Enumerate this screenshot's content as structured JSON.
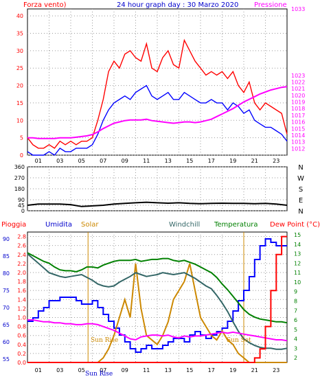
{
  "header": {
    "left_label": "Forza vento)",
    "title": "24 hour graph day : 30 Marzo 2020",
    "right_label": "Pressione"
  },
  "bottom_header": {
    "pioggia": "Pioggia",
    "umidita": "Umidita",
    "solar": "Solar",
    "windchill": "Windchill",
    "temperatura": "Temperatura",
    "dewpoint": "Dew Point (°C)"
  },
  "annotations": {
    "sun_rise": "Sun Rise",
    "sun_set": "Sun Set",
    "sun_rise_axis": "Sun Rise"
  },
  "colors": {
    "wind": "#ff0000",
    "gust_avg": "#0000ff",
    "pressure": "#ff00ff",
    "direction": "#000000",
    "humidity": "#0000ff",
    "solar": "#cc8800",
    "windchill": "#336666",
    "temperature": "#008000",
    "dewpoint": "#ff00ff",
    "rain": "#ff0000",
    "grid": "#999999"
  },
  "chart_data": [
    {
      "type": "line",
      "title": "24 hour graph day : 30 Marzo 2020",
      "xlabel": "",
      "ylabel": "Forza vento)",
      "y2label": "Pressione",
      "x": [
        0,
        0.5,
        1,
        1.5,
        2,
        2.5,
        3,
        3.5,
        4,
        4.5,
        5,
        5.5,
        6,
        6.5,
        7,
        7.5,
        8,
        8.5,
        9,
        9.5,
        10,
        10.5,
        11,
        11.5,
        12,
        12.5,
        13,
        13.5,
        14,
        14.5,
        15,
        15.5,
        16,
        16.5,
        17,
        17.5,
        18,
        18.5,
        19,
        19.5,
        20,
        20.5,
        21,
        21.5,
        22,
        22.5,
        23,
        23.5,
        24
      ],
      "xticks": [
        "01",
        "03",
        "05",
        "07",
        "09",
        "11",
        "13",
        "15",
        "17",
        "19",
        "21",
        "23"
      ],
      "xtick_values": [
        1,
        3,
        5,
        7,
        9,
        11,
        13,
        15,
        17,
        19,
        21,
        23
      ],
      "ylim": [
        0,
        42
      ],
      "yticks": [
        0,
        5,
        10,
        15,
        20,
        25,
        30,
        35,
        40
      ],
      "y2lim": [
        1011,
        1033
      ],
      "y2ticks": [
        1012,
        1013,
        1014,
        1015,
        1016,
        1017,
        1018,
        1019,
        1020,
        1021,
        1022,
        1023,
        1033
      ],
      "series": [
        {
          "name": "Forza vento)",
          "axis": "left",
          "color": "#ff0000",
          "values": [
            5,
            3,
            2,
            2,
            3,
            2,
            4,
            3,
            4,
            3,
            4,
            4,
            5,
            10,
            16,
            24,
            27,
            25,
            29,
            30,
            28,
            27,
            32,
            25,
            24,
            28,
            30,
            26,
            25,
            33,
            30,
            27,
            25,
            23,
            24,
            23,
            24,
            22,
            24,
            20,
            18,
            21,
            15,
            13,
            15,
            14,
            13,
            12,
            6
          ]
        },
        {
          "name": "",
          "axis": "left",
          "color": "#0000ff",
          "values": [
            1,
            0,
            0,
            0,
            1,
            0,
            2,
            1,
            1,
            2,
            2,
            2,
            3,
            6,
            10,
            13,
            15,
            16,
            17,
            16,
            18,
            19,
            20,
            17,
            16,
            17,
            18,
            16,
            16,
            18,
            17,
            16,
            15,
            15,
            16,
            15,
            15,
            13,
            15,
            14,
            12,
            13,
            10,
            9,
            8,
            8,
            7,
            6,
            4
          ]
        },
        {
          "name": "Pressione",
          "axis": "right",
          "color": "#ff00ff",
          "values": [
            1013.6,
            1013.6,
            1013.5,
            1013.5,
            1013.5,
            1013.5,
            1013.6,
            1013.6,
            1013.6,
            1013.7,
            1013.8,
            1013.9,
            1014.1,
            1014.5,
            1015.0,
            1015.4,
            1015.8,
            1016.0,
            1016.2,
            1016.3,
            1016.3,
            1016.3,
            1016.4,
            1016.2,
            1016.1,
            1016.0,
            1015.9,
            1015.8,
            1015.9,
            1016.0,
            1016.0,
            1015.9,
            1016.0,
            1016.2,
            1016.4,
            1016.8,
            1017.2,
            1017.6,
            1018.0,
            1018.5,
            1019.0,
            1019.4,
            1019.8,
            1020.2,
            1020.5,
            1020.8,
            1021.0,
            1021.2,
            1021.3
          ]
        }
      ]
    },
    {
      "type": "line",
      "title": "",
      "ylabel": "",
      "y2label": "",
      "ylim": [
        0,
        360
      ],
      "yticks": [
        0,
        45,
        90,
        180,
        270,
        360
      ],
      "right_labels": [
        "N",
        "W",
        "S",
        "E",
        "N"
      ],
      "x": [
        0,
        1,
        2,
        3,
        4,
        5,
        6,
        7,
        8,
        9,
        10,
        11,
        12,
        13,
        14,
        15,
        16,
        17,
        18,
        19,
        20,
        21,
        22,
        23,
        24
      ],
      "series": [
        {
          "name": "",
          "color": "#000000",
          "values": [
            45,
            55,
            55,
            55,
            50,
            35,
            40,
            45,
            55,
            60,
            65,
            70,
            65,
            62,
            65,
            60,
            58,
            60,
            62,
            60,
            60,
            58,
            60,
            55,
            45
          ]
        }
      ]
    },
    {
      "type": "line",
      "title": "",
      "xticks": [
        "01",
        "03",
        "05",
        "07",
        "09",
        "11",
        "13",
        "15",
        "17",
        "19",
        "21",
        "23"
      ],
      "xtick_values": [
        1,
        3,
        5,
        7,
        9,
        11,
        13,
        15,
        17,
        19,
        21,
        23
      ],
      "y_rain_ticks": [
        0,
        0.2,
        0.4,
        0.6,
        0.8,
        1.0,
        1.2,
        1.4,
        1.6,
        1.8,
        2.0,
        2.2,
        2.4,
        2.6,
        2.8
      ],
      "y_hum_ticks": [
        55,
        60,
        65,
        70,
        75,
        80,
        85,
        90
      ],
      "y_temp_ticks": [
        2,
        3,
        4,
        5,
        6,
        7,
        8,
        9,
        10,
        11,
        12,
        13,
        14,
        15
      ],
      "x": [
        0,
        0.5,
        1,
        1.5,
        2,
        2.5,
        3,
        3.5,
        4,
        4.5,
        5,
        5.5,
        6,
        6.5,
        7,
        7.5,
        8,
        8.5,
        9,
        9.5,
        10,
        10.5,
        11,
        11.5,
        12,
        12.5,
        13,
        13.5,
        14,
        14.5,
        15,
        15.5,
        16,
        16.5,
        17,
        17.5,
        18,
        18.5,
        19,
        19.5,
        20,
        20.5,
        21,
        21.5,
        22,
        22.5,
        23,
        23.5,
        24
      ],
      "series": [
        {
          "name": "Umidita",
          "unit": "%",
          "color": "#0000ff",
          "values": [
            66,
            67,
            69,
            70,
            72,
            72,
            73,
            73,
            73,
            72,
            71,
            71,
            72,
            70,
            68,
            66,
            64,
            62,
            60,
            58,
            57,
            58,
            59,
            58,
            58,
            59,
            60,
            61,
            61,
            60,
            62,
            63,
            62,
            61,
            62,
            63,
            64,
            66,
            69,
            72,
            75,
            79,
            84,
            88,
            90,
            89,
            88,
            88,
            88
          ]
        },
        {
          "name": "Solar",
          "unit": "W/m2",
          "color": "#cc8800",
          "values": [
            0,
            0,
            0,
            0,
            0,
            0,
            0,
            0,
            0,
            0,
            0,
            0,
            0,
            0,
            0.1,
            0.3,
            0.6,
            1.0,
            1.4,
            1.0,
            2.2,
            1.2,
            0.6,
            0.5,
            0.4,
            0.6,
            0.9,
            1.4,
            1.6,
            1.8,
            2.2,
            1.6,
            1.0,
            0.8,
            0.6,
            0.5,
            0.7,
            0.5,
            0.4,
            0.2,
            0.1,
            0,
            0,
            0,
            0,
            0,
            0,
            0,
            0
          ]
        },
        {
          "name": "Windchill",
          "unit": "°C",
          "color": "#336666",
          "values": [
            13,
            12.5,
            12,
            11.5,
            11,
            10.8,
            10.6,
            10.5,
            10.6,
            10.7,
            10.8,
            10.5,
            10.2,
            9.8,
            9.6,
            9.5,
            9.6,
            10.0,
            10.3,
            10.6,
            11.0,
            10.8,
            10.6,
            10.7,
            10.8,
            11.0,
            10.9,
            10.8,
            10.9,
            11.0,
            10.7,
            10.4,
            10.0,
            9.6,
            9.3,
            8.6,
            7.8,
            6.9,
            5.8,
            4.8,
            4.0,
            3.6,
            3.3,
            3.1,
            3.0,
            3.0,
            2.9,
            2.9,
            3.0
          ]
        },
        {
          "name": "Temperatura",
          "unit": "°C",
          "color": "#008000",
          "values": [
            13.1,
            12.8,
            12.5,
            12.2,
            12.0,
            11.6,
            11.3,
            11.2,
            11.2,
            11.1,
            11.3,
            11.6,
            11.6,
            11.5,
            11.8,
            12.0,
            12.2,
            12.3,
            12.3,
            12.3,
            12.4,
            12.2,
            12.3,
            12.4,
            12.4,
            12.5,
            12.5,
            12.3,
            12.2,
            12.3,
            12.1,
            11.9,
            11.6,
            11.3,
            11.0,
            10.5,
            9.8,
            9.2,
            8.5,
            7.8,
            7.1,
            6.6,
            6.3,
            6.1,
            6.0,
            5.9,
            5.8,
            5.8,
            5.7
          ]
        },
        {
          "name": "Dew Point (°C)",
          "unit": "°C",
          "color": "#ff00ff",
          "values": [
            6.0,
            6.0,
            5.9,
            5.8,
            5.8,
            5.7,
            5.7,
            5.6,
            5.6,
            5.5,
            5.5,
            5.6,
            5.6,
            5.5,
            5.3,
            5.1,
            4.9,
            4.6,
            4.3,
            4.0,
            3.9,
            4.2,
            4.3,
            4.4,
            4.4,
            4.3,
            4.4,
            4.2,
            4.1,
            4.3,
            4.2,
            4.3,
            4.3,
            4.4,
            4.5,
            4.6,
            4.7,
            4.6,
            4.7,
            4.6,
            4.5,
            4.4,
            4.3,
            4.2,
            4.1,
            4.0,
            3.9,
            3.9,
            3.8
          ]
        },
        {
          "name": "Pioggia",
          "unit": "mm",
          "color": "#ff0000",
          "values": [
            0,
            0,
            0,
            0,
            0,
            0,
            0,
            0,
            0,
            0,
            0,
            0,
            0,
            0,
            0,
            0,
            0,
            0,
            0,
            0,
            0,
            0,
            0,
            0,
            0,
            0,
            0,
            0,
            0,
            0,
            0,
            0,
            0,
            0,
            0,
            0,
            0,
            0,
            0,
            0,
            0,
            0,
            0.1,
            0.3,
            0.8,
            1.6,
            2.4,
            2.8,
            2.8
          ]
        }
      ]
    }
  ]
}
